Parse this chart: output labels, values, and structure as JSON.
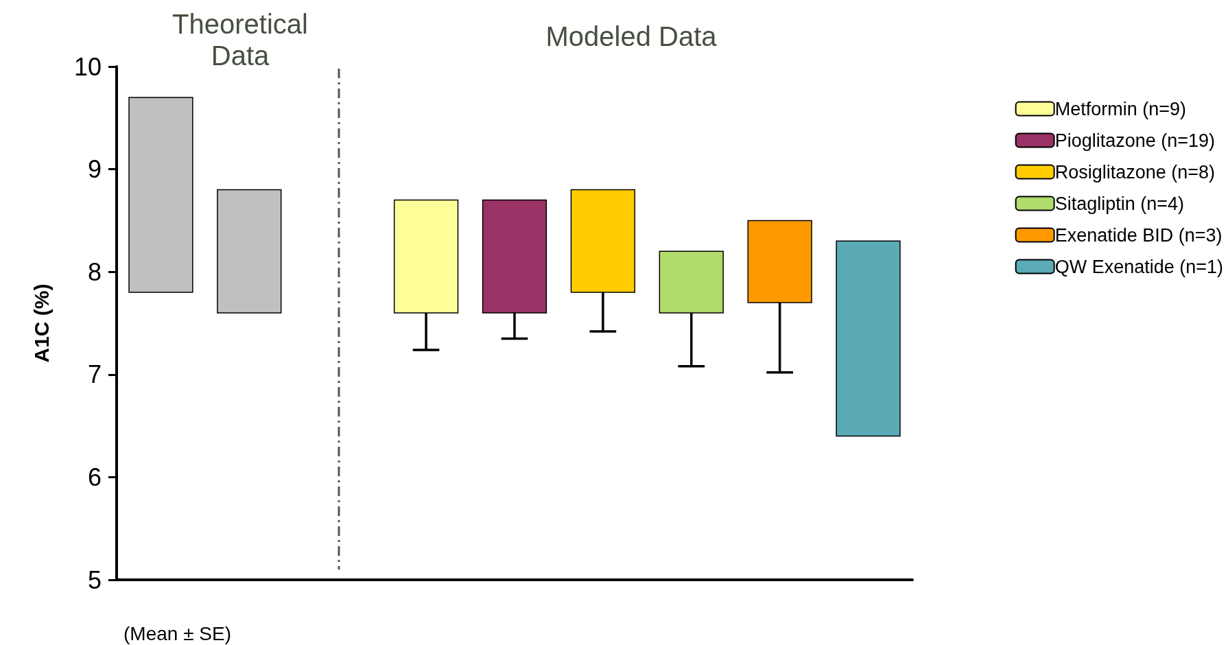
{
  "chart_data": {
    "type": "bar",
    "ylabel": "A1C (%)",
    "categories": [
      null,
      null,
      null,
      null,
      null,
      null,
      null,
      null,
      null
    ],
    "ylim": [
      5,
      10
    ],
    "yticks": [
      5,
      6,
      7,
      8,
      9,
      10
    ],
    "grid": false,
    "legend": "top right",
    "tick_labels": "y",
    "series": [
      {
        "color": "#c0c0c0",
        "values": [
          -1.9,
          -1.2,
          null,
          null,
          null,
          null,
          null,
          null,
          null
        ],
        "base": [
          9.7,
          8.8,
          null,
          null,
          null,
          null,
          null,
          null,
          null
        ]
      },
      {
        "name": "Metformin (n=9)",
        "color": "#ffff99",
        "values": [
          null,
          null,
          null,
          -1.1,
          null,
          null,
          null,
          null,
          null
        ],
        "base": [
          null,
          null,
          null,
          8.7,
          null,
          null,
          null,
          null,
          null
        ],
        "errors": [
          null,
          null,
          null,
          [
            7.24,
            7.6
          ],
          null,
          null,
          null,
          null,
          null
        ]
      },
      {
        "name": "Pioglitazone (n=19)",
        "color": "#993366",
        "values": [
          null,
          null,
          null,
          null,
          -1.1,
          null,
          null,
          null,
          null
        ],
        "base": [
          null,
          null,
          null,
          null,
          8.7,
          null,
          null,
          null,
          null
        ],
        "errors": [
          null,
          null,
          null,
          null,
          [
            7.35,
            7.6
          ],
          null,
          null,
          null,
          null
        ]
      },
      {
        "name": "Rosiglitazone (n=8)",
        "color": "#ffcc00",
        "values": [
          null,
          null,
          null,
          null,
          null,
          -1.0,
          null,
          null,
          null
        ],
        "base": [
          null,
          null,
          null,
          null,
          null,
          8.8,
          null,
          null,
          null
        ],
        "errors": [
          null,
          null,
          null,
          null,
          null,
          [
            7.42,
            7.8
          ],
          null,
          null,
          null
        ]
      },
      {
        "name": "Sitagliptin (n=4)",
        "color": "#b0dc6c",
        "values": [
          null,
          null,
          null,
          null,
          null,
          null,
          -0.6,
          null,
          null
        ],
        "base": [
          null,
          null,
          null,
          null,
          null,
          null,
          8.2,
          null,
          null
        ],
        "errors": [
          null,
          null,
          null,
          null,
          null,
          null,
          [
            7.08,
            7.6
          ],
          null,
          null
        ]
      },
      {
        "name": "Exenatide BID (n=3)",
        "color": "#ff9900",
        "values": [
          null,
          null,
          null,
          null,
          null,
          null,
          null,
          -0.8,
          null
        ],
        "base": [
          null,
          null,
          null,
          null,
          null,
          null,
          null,
          8.5,
          null
        ],
        "errors": [
          null,
          null,
          null,
          null,
          null,
          null,
          null,
          [
            7.02,
            7.7
          ],
          null
        ]
      },
      {
        "name": "QW Exenatide (n=1)",
        "color": "#5aabb5",
        "values": [
          null,
          null,
          null,
          null,
          null,
          null,
          null,
          null,
          -1.9
        ],
        "base": [
          null,
          null,
          null,
          null,
          null,
          null,
          null,
          null,
          8.3
        ]
      }
    ],
    "annotations": [
      "Theoretical Data",
      "Modeled Data",
      "(Mean ± SE)"
    ]
  }
}
